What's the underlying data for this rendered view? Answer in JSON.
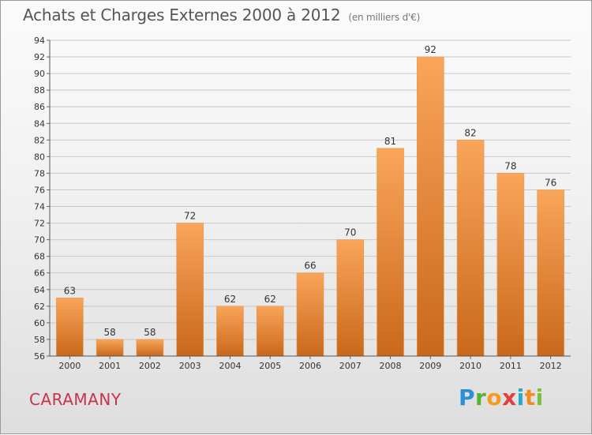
{
  "header": {
    "title": "Achats et Charges Externes 2000 à 2012",
    "subtitle": "(en milliers d'€)"
  },
  "footer": {
    "commune": "CARAMANY",
    "logo": "Proxiti"
  },
  "colors": {
    "bar_light": "#f9a55a",
    "bar_dark": "#c9681a",
    "title": "#555555",
    "commune": "#c8324c"
  },
  "chart_data": {
    "type": "bar",
    "title": "Achats et Charges Externes 2000 à 2012",
    "subtitle": "(en milliers d'€)",
    "categories": [
      "2000",
      "2001",
      "2002",
      "2003",
      "2004",
      "2005",
      "2006",
      "2007",
      "2008",
      "2009",
      "2010",
      "2011",
      "2012"
    ],
    "values": [
      63,
      58,
      58,
      72,
      62,
      62,
      66,
      70,
      81,
      92,
      82,
      78,
      76
    ],
    "ylim": [
      56,
      94
    ],
    "yticks": [
      56,
      58,
      60,
      62,
      64,
      66,
      68,
      70,
      72,
      74,
      76,
      78,
      80,
      82,
      84,
      86,
      88,
      90,
      92,
      94
    ],
    "xlabel": "",
    "ylabel": "",
    "grid": true,
    "legend": "none"
  }
}
